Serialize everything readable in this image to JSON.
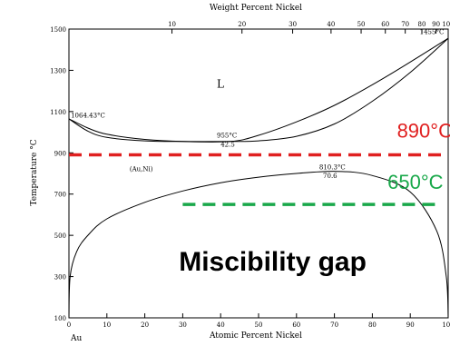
{
  "chart_data": {
    "type": "line",
    "title": "",
    "xlabel": "Atomic Percent Nickel",
    "ylabel": "Temperature °C",
    "top_axis_label": "Weight Percent Nickel",
    "xlim": [
      0,
      100
    ],
    "ylim": [
      100,
      1500
    ],
    "yticks": [
      "100",
      "300",
      "500",
      "700",
      "900",
      "1100",
      "1300",
      "1500"
    ],
    "xticks": [
      "0",
      "10",
      "20",
      "30",
      "40",
      "50",
      "60",
      "70",
      "80",
      "90",
      "100"
    ],
    "top_ticks": [
      "10",
      "20",
      "30",
      "40",
      "50",
      "60",
      "70",
      "80",
      "90",
      "100"
    ],
    "element_left": "Au",
    "series": [
      {
        "id": "liquidus",
        "x": [
          0,
          5,
          10,
          20,
          30,
          42.5,
          50,
          60,
          70,
          80,
          90,
          100
        ],
        "y": [
          1064.43,
          1020,
          990,
          965,
          955,
          955,
          985,
          1050,
          1130,
          1230,
          1340,
          1455
        ]
      },
      {
        "id": "solidus",
        "x": [
          0,
          5,
          10,
          20,
          30,
          42.5,
          50,
          60,
          70,
          80,
          90,
          100
        ],
        "y": [
          1064.43,
          1005,
          975,
          958,
          955,
          955,
          958,
          980,
          1040,
          1150,
          1290,
          1455
        ]
      },
      {
        "id": "miscibility-gap",
        "x": [
          0,
          0.3,
          2,
          5,
          10,
          20,
          30,
          40,
          50,
          60,
          70.6,
          80,
          90,
          97,
          99.5,
          100
        ],
        "y": [
          100,
          300,
          420,
          500,
          580,
          660,
          715,
          755,
          782,
          800,
          810.3,
          790,
          710,
          520,
          300,
          100
        ]
      }
    ],
    "annotations": [
      {
        "text": "1064.43°C",
        "x": 0.5,
        "y": 1070
      },
      {
        "text": "1455°C",
        "x": 92.5,
        "y": 1475
      },
      {
        "text": "955°C",
        "x": 39,
        "y": 975
      },
      {
        "text": "42.5",
        "x": 40,
        "y": 930
      },
      {
        "text": "810.3°C",
        "x": 66,
        "y": 820
      },
      {
        "text": "70.6",
        "x": 67,
        "y": 778
      },
      {
        "text": "L",
        "x": 39,
        "y": 1215
      },
      {
        "text": "(Au,Ni)",
        "x": 16,
        "y": 812
      }
    ],
    "overlays": [
      {
        "text": "890°C",
        "y": 890,
        "x_from": 0,
        "x_to": 100,
        "color": "#e02020",
        "label_x": 86.5,
        "label_y": 975
      },
      {
        "text": "650°C",
        "y": 650,
        "x_from": 30,
        "x_to": 98,
        "color": "#19a84a",
        "label_x": 84,
        "label_y": 725
      }
    ],
    "callout": {
      "text": "Miscibility gap",
      "x": 29,
      "y": 330
    },
    "grid": false,
    "legend": "none"
  }
}
